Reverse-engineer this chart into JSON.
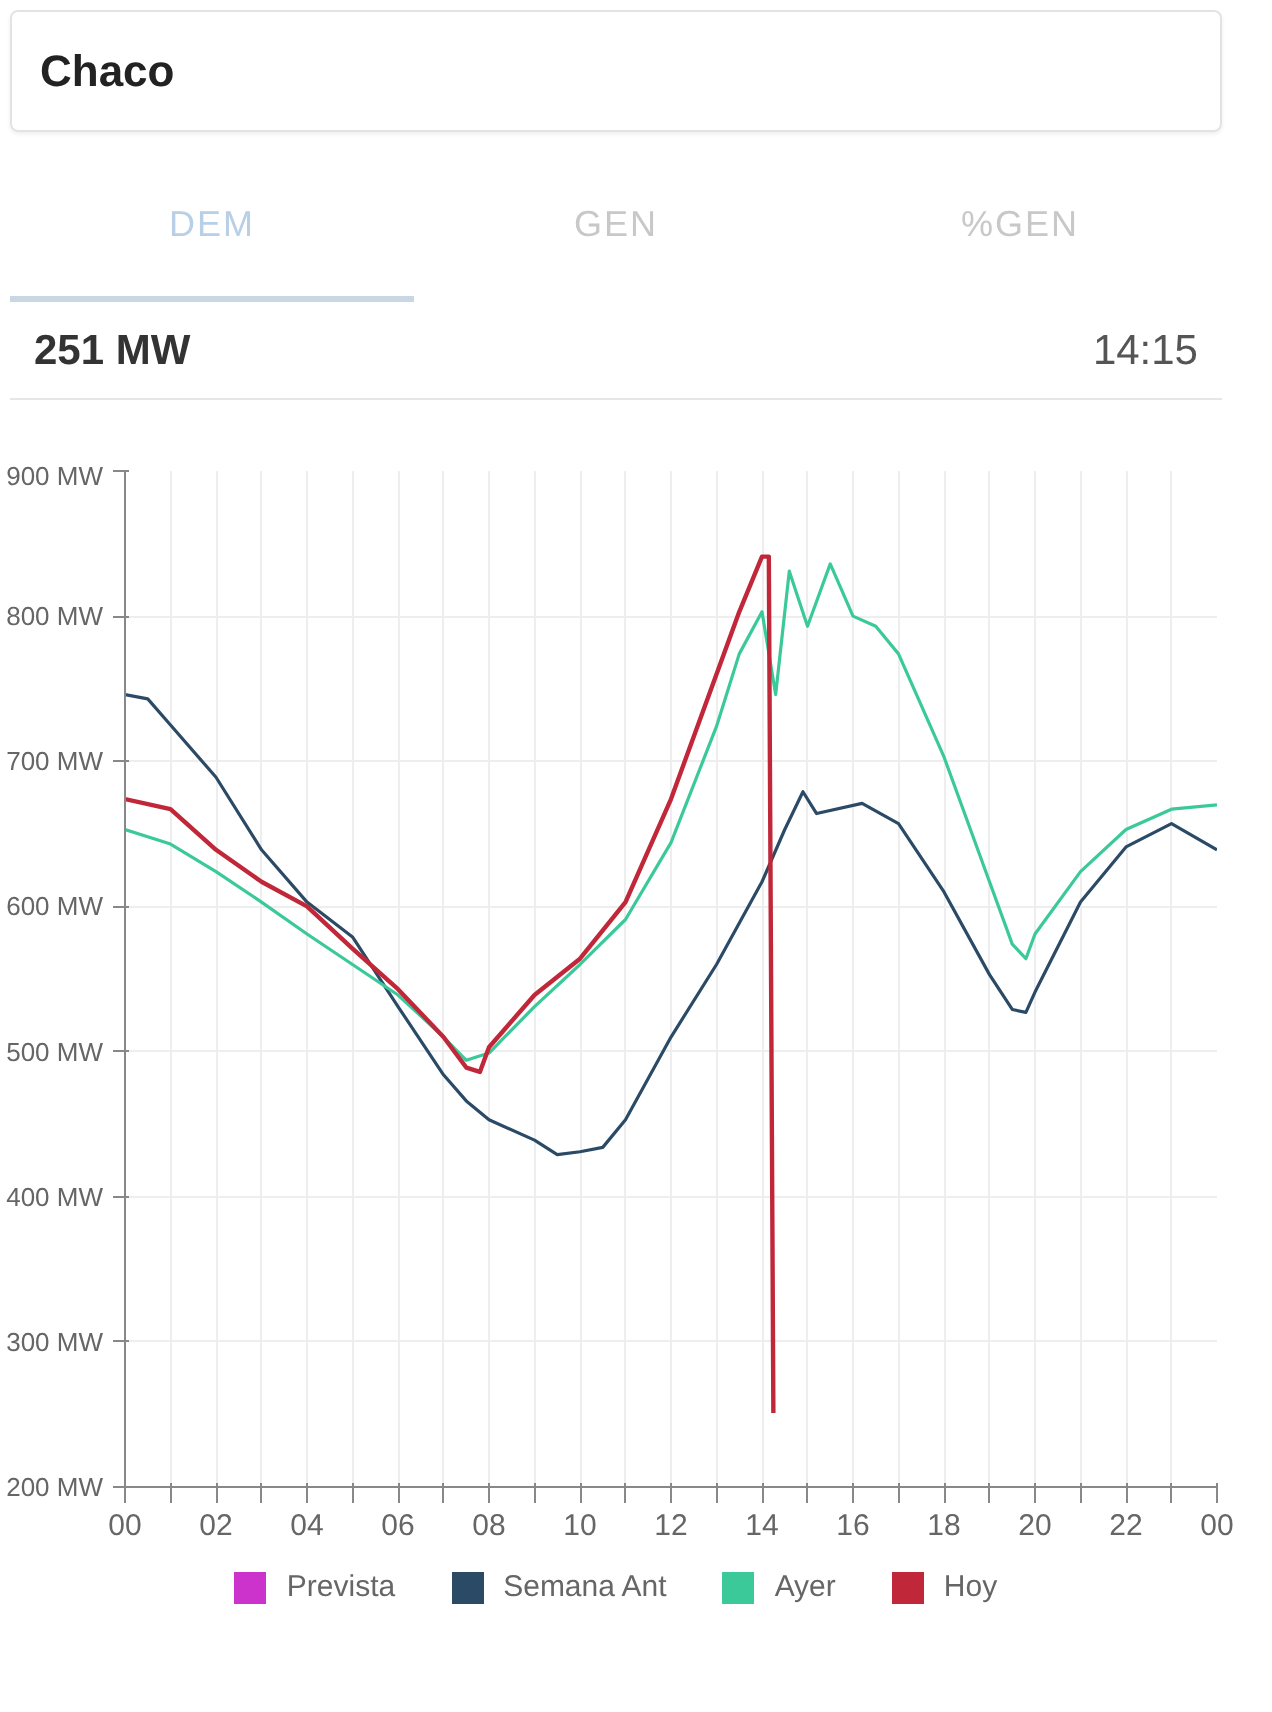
{
  "chart_data": {
    "type": "line",
    "title": "Chaco",
    "annotations": [
      "DEM",
      "GEN",
      "%GEN",
      "251 MW",
      "14:15"
    ],
    "xlim": [
      0,
      24
    ],
    "xticks": [
      {
        "value": 0,
        "label": "00"
      },
      {
        "value": 1,
        "label": null
      },
      {
        "value": 2,
        "label": "02"
      },
      {
        "value": 3,
        "label": null
      },
      {
        "value": 4,
        "label": "04"
      },
      {
        "value": 5,
        "label": null
      },
      {
        "value": 6,
        "label": "06"
      },
      {
        "value": 7,
        "label": null
      },
      {
        "value": 8,
        "label": "08"
      },
      {
        "value": 9,
        "label": null
      },
      {
        "value": 10,
        "label": "10"
      },
      {
        "value": 11,
        "label": null
      },
      {
        "value": 12,
        "label": "12"
      },
      {
        "value": 13,
        "label": null
      },
      {
        "value": 14,
        "label": "14"
      },
      {
        "value": 15,
        "label": null
      },
      {
        "value": 16,
        "label": "16"
      },
      {
        "value": 17,
        "label": null
      },
      {
        "value": 18,
        "label": "18"
      },
      {
        "value": 19,
        "label": null
      },
      {
        "value": 20,
        "label": "20"
      },
      {
        "value": 21,
        "label": null
      },
      {
        "value": 22,
        "label": "22"
      },
      {
        "value": 23,
        "label": null
      },
      {
        "value": 24,
        "label": "00"
      }
    ],
    "ylim": [
      200,
      900
    ],
    "yticks": [
      {
        "value": 200,
        "label": "200 MW"
      },
      {
        "value": 300,
        "label": "300 MW"
      },
      {
        "value": 400,
        "label": "400 MW"
      },
      {
        "value": 500,
        "label": "500 MW"
      },
      {
        "value": 600,
        "label": "600 MW"
      },
      {
        "value": 700,
        "label": "700 MW"
      },
      {
        "value": 800,
        "label": "800 MW"
      },
      {
        "value": 900,
        "label": "900 MW"
      }
    ],
    "grid": true,
    "legend": "bottom",
    "series": [
      {
        "name": "Prevista",
        "color": "#cc33cc"
      },
      {
        "name": "Semana Ant",
        "color": "#2a4a66",
        "x": [
          0,
          0.5,
          1,
          2,
          3,
          4,
          5,
          6,
          7,
          7.5,
          8,
          9,
          9.5,
          10,
          10.5,
          11,
          12,
          13,
          14,
          14.5,
          14.9,
          15.2,
          16.2,
          17,
          18,
          19,
          19.5,
          19.8,
          20,
          21,
          22,
          23,
          24
        ],
        "values": [
          746,
          743,
          725,
          689,
          639,
          603,
          579,
          531,
          484,
          466,
          453,
          439,
          429,
          431,
          434,
          453,
          510,
          560,
          617,
          653,
          679,
          664,
          671,
          657,
          610,
          553,
          529,
          527,
          541,
          603,
          641,
          657,
          639
        ]
      },
      {
        "name": "Ayer",
        "color": "#3cc99a",
        "x": [
          0,
          1,
          2,
          3,
          4,
          5,
          6,
          7,
          7.5,
          8,
          9,
          10,
          11,
          12,
          13,
          13.5,
          14,
          14.3,
          14.6,
          15,
          15.5,
          16,
          16.5,
          17,
          18,
          19,
          19.5,
          19.8,
          20,
          21,
          22,
          23,
          24
        ],
        "values": [
          653,
          643,
          624,
          603,
          581,
          560,
          539,
          510,
          494,
          499,
          531,
          560,
          591,
          644,
          724,
          774,
          803,
          746,
          831,
          793,
          836,
          800,
          793,
          774,
          703,
          617,
          574,
          564,
          581,
          624,
          653,
          667,
          670
        ]
      },
      {
        "name": "Hoy",
        "color": "#c0283a",
        "x": [
          0,
          1,
          2,
          3,
          4,
          5,
          6,
          7,
          7.5,
          7.8,
          8,
          9,
          10,
          11,
          12,
          13,
          13.5,
          14,
          14.15,
          14.25
        ],
        "values": [
          674,
          667,
          639,
          617,
          600,
          571,
          543,
          510,
          489,
          486,
          503,
          539,
          564,
          603,
          674,
          760,
          803,
          841,
          841,
          251
        ]
      }
    ]
  }
}
